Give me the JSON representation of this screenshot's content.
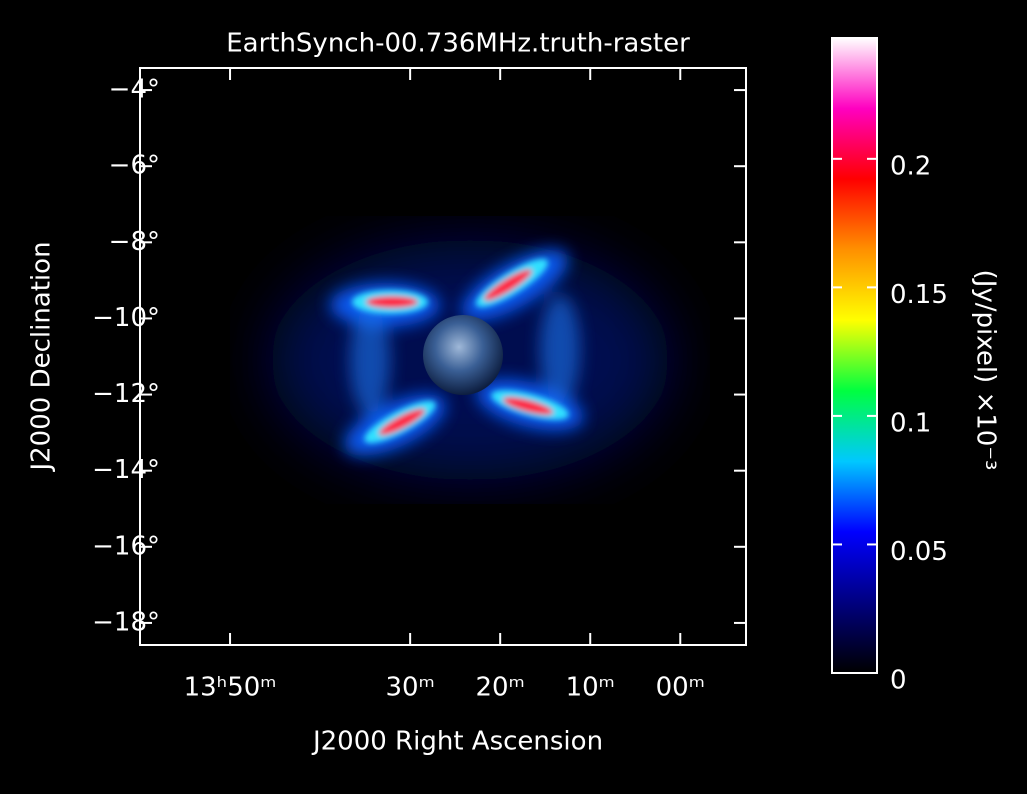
{
  "chart_data": {
    "type": "heatmap",
    "title": "EarthSynch-00.736MHz.truth-raster",
    "xlabel": "J2000 Right Ascension",
    "ylabel": "J2000 Declination",
    "xlim": [
      840,
      772.7
    ],
    "ylim": [
      -18.58,
      -3.42
    ],
    "xticks": [
      {
        "value": 830,
        "label": "13ʰ50ᵐ"
      },
      {
        "value": 810,
        "label": "30ᵐ"
      },
      {
        "value": 800,
        "label": "20ᵐ"
      },
      {
        "value": 790,
        "label": "10ᵐ"
      },
      {
        "value": 780,
        "label": "00ᵐ"
      }
    ],
    "yticks": [
      {
        "value": -4,
        "label": "−4°"
      },
      {
        "value": -6,
        "label": "−6°"
      },
      {
        "value": -8,
        "label": "−8°"
      },
      {
        "value": -10,
        "label": "−10°"
      },
      {
        "value": -12,
        "label": "−12°"
      },
      {
        "value": -14,
        "label": "−14°"
      },
      {
        "value": -16,
        "label": "−16°"
      },
      {
        "value": -18,
        "label": "−18°"
      }
    ],
    "colorbar": {
      "label": "(Jy/pixel) ×10⁻³",
      "lim": [
        0,
        0.247
      ],
      "ticks": [
        0,
        0.05,
        0.1,
        0.15,
        0.2
      ],
      "colors": [
        "#000000",
        "#000080",
        "#0000ff",
        "#00c8ff",
        "#00ff40",
        "#ffff00",
        "#ff9000",
        "#ff0000",
        "#ff00c0",
        "#ffffff"
      ]
    }
  }
}
